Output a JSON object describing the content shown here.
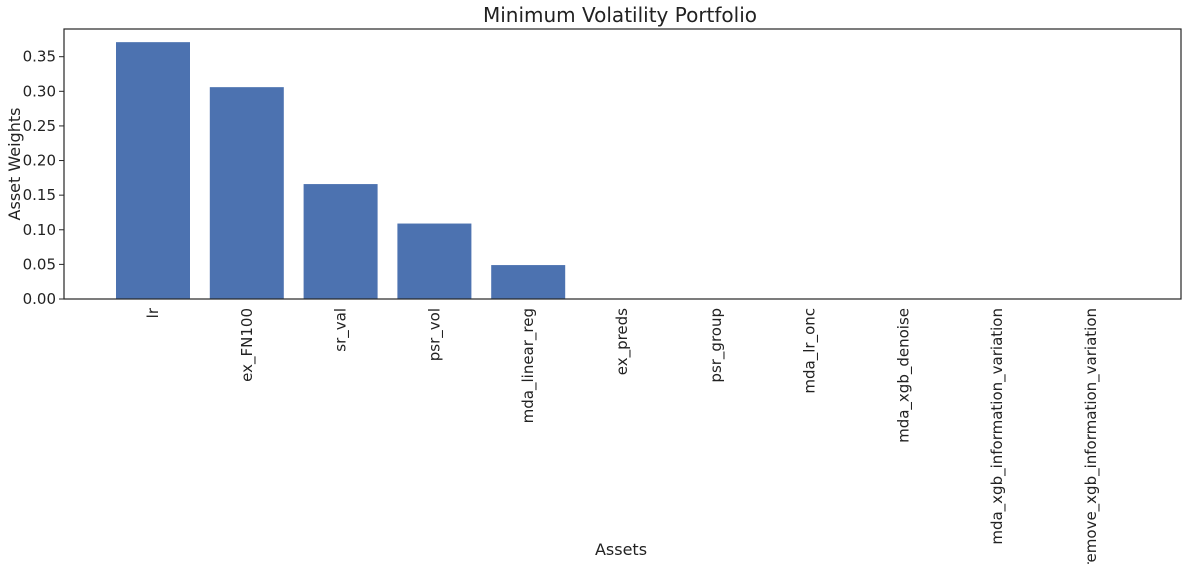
{
  "chart_data": {
    "type": "bar",
    "title": "Minimum Volatility Portfolio",
    "xlabel": "Assets",
    "ylabel": "Asset Weights",
    "categories": [
      "lr",
      "ex_FN100",
      "sr_val",
      "psr_vol",
      "mda_linear_reg",
      "ex_preds",
      "psr_group",
      "mda_lr_onc",
      "mda_xgb_denoise",
      "mda_xgb_information_variation",
      "remove_xgb_information_variation"
    ],
    "values": [
      0.371,
      0.306,
      0.166,
      0.109,
      0.049,
      0.0,
      0.0,
      0.0,
      0.0,
      0.0,
      0.0
    ],
    "ylim": [
      0,
      0.39
    ],
    "yticks": [
      0.0,
      0.05,
      0.1,
      0.15,
      0.2,
      0.25,
      0.3,
      0.35
    ],
    "ytick_labels": [
      "0.00",
      "0.05",
      "0.10",
      "0.15",
      "0.20",
      "0.25",
      "0.30",
      "0.35"
    ],
    "bar_color": "#4c72b0",
    "grid": false,
    "legend": "none"
  }
}
